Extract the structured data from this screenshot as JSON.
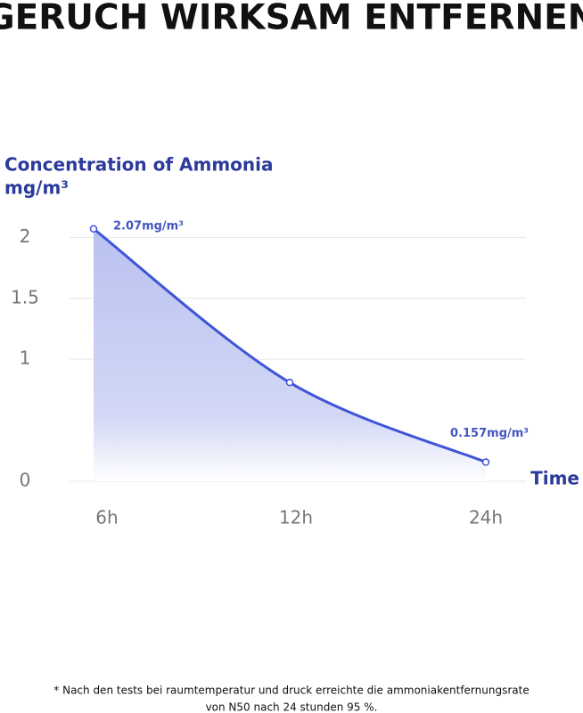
{
  "chart_data": {
    "type": "line",
    "title": "GERUCH WIRKSAM ENTFERNEN",
    "y_label": "Concentration of Ammonia",
    "y_unit": "mg/m³",
    "x_label": "Time",
    "categories": [
      "6h",
      "12h",
      "24h"
    ],
    "values": [
      2.07,
      0.81,
      0.157
    ],
    "value_labels": [
      "2.07mg/m³",
      null,
      "0.157mg/m³"
    ],
    "color": "#3f55d8",
    "ylim": [
      0,
      2.2
    ],
    "yticks": [
      0,
      1,
      1.5,
      2
    ],
    "grid": true,
    "footnote": [
      "* Nach den tests bei raumtemperatur und druck erreichte die ammoniakentfernungsrate",
      "von N50 nach 24 stunden 95 %."
    ]
  }
}
